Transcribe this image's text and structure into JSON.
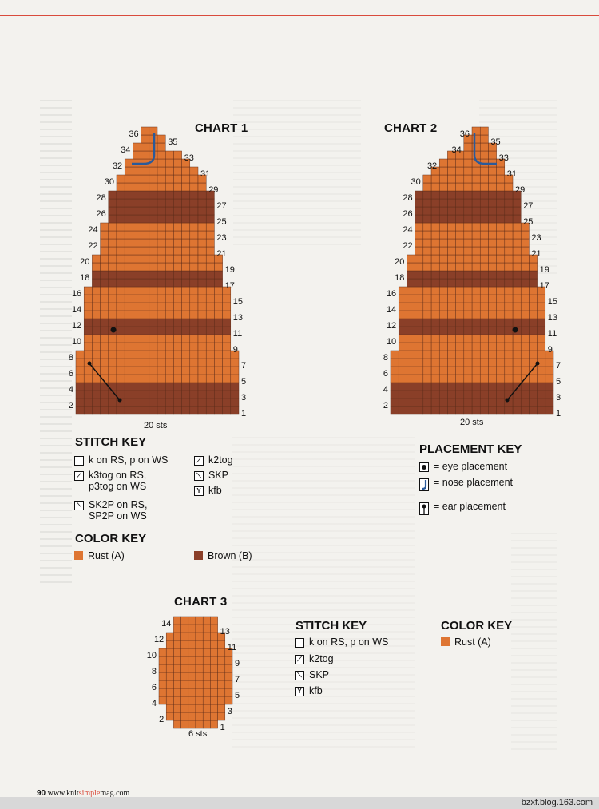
{
  "colors": {
    "rust": "#de7532",
    "brown": "#8a3f28",
    "grid": "#5a2a18",
    "rule": "#d94b3c"
  },
  "chart1": {
    "title": "CHART 1",
    "sts_label": "20 sts",
    "rows": [
      {
        "row": 1,
        "start": 0,
        "count": 20,
        "color": "brown"
      },
      {
        "row": 2,
        "start": 0,
        "count": 20,
        "color": "brown"
      },
      {
        "row": 3,
        "start": 0,
        "count": 20,
        "color": "brown"
      },
      {
        "row": 4,
        "start": 0,
        "count": 20,
        "color": "brown"
      },
      {
        "row": 5,
        "start": 0,
        "count": 20,
        "color": "rust"
      },
      {
        "row": 6,
        "start": 0,
        "count": 20,
        "color": "rust"
      },
      {
        "row": 7,
        "start": 0,
        "count": 20,
        "color": "rust"
      },
      {
        "row": 8,
        "start": 0,
        "count": 20,
        "color": "rust"
      },
      {
        "row": 9,
        "start": 1,
        "count": 18,
        "color": "rust"
      },
      {
        "row": 10,
        "start": 1,
        "count": 18,
        "color": "rust"
      },
      {
        "row": 11,
        "start": 1,
        "count": 18,
        "color": "brown"
      },
      {
        "row": 12,
        "start": 1,
        "count": 18,
        "color": "brown"
      },
      {
        "row": 13,
        "start": 1,
        "count": 18,
        "color": "rust"
      },
      {
        "row": 14,
        "start": 1,
        "count": 18,
        "color": "rust"
      },
      {
        "row": 15,
        "start": 1,
        "count": 18,
        "color": "rust"
      },
      {
        "row": 16,
        "start": 1,
        "count": 18,
        "color": "rust"
      },
      {
        "row": 17,
        "start": 2,
        "count": 16,
        "color": "brown"
      },
      {
        "row": 18,
        "start": 2,
        "count": 16,
        "color": "brown"
      },
      {
        "row": 19,
        "start": 2,
        "count": 16,
        "color": "rust"
      },
      {
        "row": 20,
        "start": 2,
        "count": 16,
        "color": "rust"
      },
      {
        "row": 21,
        "start": 3,
        "count": 14,
        "color": "rust"
      },
      {
        "row": 22,
        "start": 3,
        "count": 14,
        "color": "rust"
      },
      {
        "row": 23,
        "start": 3,
        "count": 14,
        "color": "rust"
      },
      {
        "row": 24,
        "start": 3,
        "count": 14,
        "color": "rust"
      },
      {
        "row": 25,
        "start": 4,
        "count": 13,
        "color": "brown"
      },
      {
        "row": 26,
        "start": 4,
        "count": 13,
        "color": "brown"
      },
      {
        "row": 27,
        "start": 4,
        "count": 13,
        "color": "brown"
      },
      {
        "row": 28,
        "start": 4,
        "count": 13,
        "color": "brown"
      },
      {
        "row": 29,
        "start": 5,
        "count": 11,
        "color": "rust"
      },
      {
        "row": 30,
        "start": 5,
        "count": 11,
        "color": "rust"
      },
      {
        "row": 31,
        "start": 6,
        "count": 9,
        "color": "rust"
      },
      {
        "row": 32,
        "start": 6,
        "count": 8,
        "color": "rust"
      },
      {
        "row": 33,
        "start": 7,
        "count": 6,
        "color": "rust"
      },
      {
        "row": 34,
        "start": 7,
        "count": 4,
        "color": "rust"
      },
      {
        "row": 35,
        "start": 8,
        "count": 3,
        "color": "rust"
      },
      {
        "row": 36,
        "start": 8,
        "count": 2,
        "color": "rust"
      }
    ],
    "left_labels": [
      "2",
      "4",
      "6",
      "8",
      "10",
      "12",
      "14",
      "16",
      "18",
      "20",
      "22",
      "24",
      "26",
      "28",
      "30",
      "32",
      "34",
      "36"
    ],
    "right_labels": [
      "1",
      "3",
      "5",
      "7",
      "9",
      "11",
      "13",
      "15",
      "17",
      "19",
      "21",
      "23",
      "25",
      "27",
      "29",
      "31",
      "33",
      "35"
    ]
  },
  "chart2": {
    "title": "CHART 2",
    "sts_label": "20 sts",
    "left_labels": [
      "2",
      "4",
      "6",
      "8",
      "10",
      "12",
      "14",
      "16",
      "18",
      "20",
      "22",
      "24",
      "26",
      "28",
      "30",
      "32",
      "34",
      "36"
    ],
    "right_labels": [
      "1",
      "3",
      "5",
      "7",
      "9",
      "11",
      "13",
      "15",
      "17",
      "19",
      "21",
      "23",
      "25",
      "27",
      "29",
      "31",
      "33",
      "35"
    ]
  },
  "chart3": {
    "title": "CHART 3",
    "sts_label": "6 sts",
    "rows": [
      {
        "row": 1,
        "start": 2,
        "count": 6
      },
      {
        "row": 2,
        "start": 1,
        "count": 8
      },
      {
        "row": 3,
        "start": 1,
        "count": 8
      },
      {
        "row": 4,
        "start": 0,
        "count": 10
      },
      {
        "row": 5,
        "start": 0,
        "count": 10
      },
      {
        "row": 6,
        "start": 0,
        "count": 10
      },
      {
        "row": 7,
        "start": 0,
        "count": 10
      },
      {
        "row": 8,
        "start": 0,
        "count": 10
      },
      {
        "row": 9,
        "start": 0,
        "count": 10
      },
      {
        "row": 10,
        "start": 0,
        "count": 10
      },
      {
        "row": 11,
        "start": 1,
        "count": 8
      },
      {
        "row": 12,
        "start": 1,
        "count": 8
      },
      {
        "row": 13,
        "start": 2,
        "count": 6
      },
      {
        "row": 14,
        "start": 2,
        "count": 6
      }
    ],
    "left_labels": [
      "2",
      "4",
      "6",
      "8",
      "10",
      "12",
      "14"
    ],
    "right_labels": [
      "1",
      "3",
      "5",
      "7",
      "9",
      "11",
      "13"
    ]
  },
  "stitch_key_1": {
    "title": "STITCH KEY",
    "items": [
      {
        "sym": "",
        "text": "k on RS, p on WS"
      },
      {
        "sym": "⟋",
        "text": "k3tog on RS,\np3tog on WS"
      },
      {
        "sym": "⟍",
        "text": "SK2P on RS,\nSP2P on WS"
      },
      {
        "sym": "⟋",
        "text": "k2tog"
      },
      {
        "sym": "⟍",
        "text": "SKP"
      },
      {
        "sym": "Y",
        "text": "kfb"
      }
    ]
  },
  "color_key_1": {
    "title": "COLOR KEY",
    "items": [
      {
        "color": "rust",
        "text": "Rust (A)"
      },
      {
        "color": "brown",
        "text": "Brown (B)"
      }
    ]
  },
  "placement_key": {
    "title": "PLACEMENT KEY",
    "items": [
      {
        "icon": "eye",
        "text": "= eye placement"
      },
      {
        "icon": "nose",
        "text": "= nose placement"
      },
      {
        "icon": "ear",
        "text": "= ear placement"
      }
    ]
  },
  "stitch_key_2": {
    "title": "STITCH KEY",
    "items": [
      {
        "sym": "",
        "text": "k on RS, p on WS"
      },
      {
        "sym": "⟋",
        "text": "k2tog"
      },
      {
        "sym": "⟍",
        "text": "SKP"
      },
      {
        "sym": "Y",
        "text": "kfb"
      }
    ]
  },
  "color_key_2": {
    "title": "COLOR KEY",
    "items": [
      {
        "color": "rust",
        "text": "Rust (A)"
      }
    ]
  },
  "footer": {
    "page": "90",
    "site_prefix": "www.knit",
    "site_mid": "simple",
    "site_suffix": "mag.com"
  },
  "watermark": "bzxf.blog.163.com"
}
